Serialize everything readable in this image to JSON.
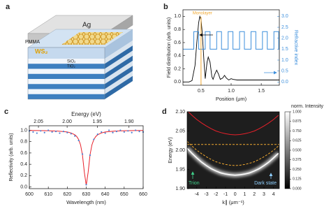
{
  "diagram": {
    "label": "a",
    "layers": {
      "top": "Ag",
      "spacer": "PMMA",
      "monolayer": "WS₂",
      "low_index": "SiO₂",
      "high_index": "TiO₂"
    }
  },
  "chart_data": [
    {
      "type": "line",
      "label": "b",
      "x_label": "Position (μm)",
      "y_label": "Field distribution (arb. units)",
      "y2_label": "Refractive index",
      "xlim": [
        0.2,
        1.8
      ],
      "xticks": [
        0.5,
        {
          "value": 1,
          "label": "1.0"
        },
        1.5
      ],
      "ylim": [
        -0.05,
        1.1
      ],
      "yticks": [
        {
          "value": 0,
          "label": "0.0"
        },
        0.2,
        0.4,
        0.6,
        0.8,
        {
          "value": 1,
          "label": "1.0"
        }
      ],
      "y2lim": [
        -0.15,
        3.3
      ],
      "y2ticks": [
        {
          "value": 0,
          "label": "0.0"
        },
        0.5,
        {
          "value": 1,
          "label": "1.0"
        },
        1.5,
        {
          "value": 2,
          "label": "2.0"
        },
        2.5,
        {
          "value": 3,
          "label": "3.0"
        }
      ],
      "annotation": {
        "text": "Monolayer",
        "x": 0.5,
        "color": "#f0a830"
      },
      "series": [
        {
          "color": "#000000",
          "x": [
            0.2,
            0.3,
            0.35,
            0.4,
            0.43,
            0.46,
            0.48,
            0.5,
            0.52,
            0.55,
            0.57,
            0.6,
            0.62,
            0.65,
            0.68,
            0.7,
            0.73,
            0.76,
            0.79,
            0.82,
            0.86,
            0.89,
            0.92,
            0.96,
            1.0,
            1.03,
            1.1,
            1.2,
            1.4,
            1.6,
            1.8
          ],
          "values": [
            0,
            0,
            0.02,
            0.25,
            0.6,
            0.9,
            1.0,
            0.95,
            0.75,
            0.3,
            0.05,
            0.3,
            0.38,
            0.3,
            0.08,
            0.04,
            0.12,
            0.18,
            0.12,
            0.04,
            0.06,
            0.1,
            0.06,
            0.03,
            0.05,
            0.04,
            0.03,
            0.03,
            0.03,
            0.03,
            0.03
          ]
        },
        {
          "color": "#3d8fdc",
          "axis": "y2",
          "x": [
            0.2,
            0.38,
            0.38,
            0.46,
            0.46,
            0.57,
            0.57,
            0.65,
            0.65,
            0.76,
            0.76,
            0.84,
            0.84,
            0.95,
            0.95,
            1.03,
            1.03,
            1.14,
            1.14,
            1.22,
            1.22,
            1.33,
            1.33,
            1.41,
            1.41,
            1.52,
            1.52,
            1.6,
            1.6,
            1.71,
            1.71,
            1.79,
            1.79,
            1.8
          ],
          "values": [
            1.5,
            1.5,
            2.3,
            2.3,
            1.5,
            1.5,
            2.3,
            2.3,
            1.5,
            1.5,
            2.3,
            2.3,
            1.5,
            1.5,
            2.3,
            2.3,
            1.5,
            1.5,
            2.3,
            2.3,
            1.5,
            1.5,
            2.3,
            2.3,
            1.5,
            1.5,
            2.3,
            2.3,
            1.5,
            1.5,
            2.3,
            2.3,
            1.5,
            1.5
          ]
        }
      ]
    },
    {
      "type": "line",
      "label": "c",
      "x_label": "Wavelength (nm)",
      "x2_label": "Energy (eV)",
      "y_label": "Reflectivity (arb. units)",
      "xlim": [
        600,
        660
      ],
      "xticks": [
        600,
        610,
        620,
        630,
        640,
        650,
        660
      ],
      "x2ticks": [
        2.05,
        {
          "value": 2,
          "label": "2.00"
        },
        1.95,
        {
          "value": 1.9,
          "label": "1.90"
        }
      ],
      "ylim": [
        -0.03,
        1.08
      ],
      "yticks": [
        {
          "value": 0,
          "label": "0.0"
        },
        0.2,
        0.4,
        0.6,
        0.8,
        {
          "value": 1,
          "label": "1.0"
        }
      ],
      "series": [
        {
          "color": "#e8202a",
          "x": [
            600,
            605,
            610,
            615,
            620,
            622,
            624,
            625,
            626,
            627,
            628,
            629,
            630,
            631,
            632,
            633,
            634,
            635,
            636,
            638,
            640,
            645,
            650,
            655,
            660
          ],
          "values": [
            0.997,
            0.995,
            0.992,
            0.986,
            0.97,
            0.953,
            0.92,
            0.889,
            0.837,
            0.743,
            0.566,
            0.259,
            0.03,
            0.259,
            0.566,
            0.743,
            0.837,
            0.889,
            0.92,
            0.953,
            0.97,
            0.986,
            0.992,
            0.995,
            0.997
          ]
        },
        {
          "color": "#4a7fd4",
          "marker": true,
          "x": [
            600,
            602,
            604,
            606,
            608,
            610,
            612,
            614,
            616,
            618,
            620,
            622,
            624,
            626,
            628,
            630,
            632,
            634,
            636,
            638,
            640,
            642,
            644,
            646,
            648,
            650,
            652,
            654,
            656,
            658,
            660
          ],
          "values": [
            0.99,
            0.97,
            0.95,
            0.99,
            0.96,
            1.0,
            0.97,
            0.98,
            0.95,
            0.98,
            0.96,
            0.94,
            0.9,
            0.82,
            0.58,
            0.04,
            0.56,
            0.84,
            0.93,
            0.97,
            0.95,
            1.0,
            0.96,
            0.98,
            1.0,
            0.97,
            0.99,
            0.96,
            1.0,
            0.98,
            0.97
          ]
        }
      ]
    },
    {
      "type": "heatmap",
      "label": "d",
      "x_label": "k∥ (μm⁻¹)",
      "y_label": "Energy (eV)",
      "xlim": [
        -5,
        4.6
      ],
      "xticks": [
        -4,
        -3,
        -2,
        -1,
        0,
        1,
        2,
        3,
        4
      ],
      "ylim": [
        1.9,
        2.1
      ],
      "yticks": [
        {
          "value": 1.9,
          "label": "1.90"
        },
        1.95,
        {
          "value": 2,
          "label": "2.00"
        },
        2.05,
        {
          "value": 2.1,
          "label": "2.10"
        }
      ],
      "colorbar": {
        "label": "norm. Intensity",
        "colors": [
          "#000000",
          "#ffffff"
        ],
        "ticks": [
          {
            "value": 0,
            "label": "0.000"
          },
          0.125,
          {
            "value": 0.25,
            "label": "0.250"
          },
          0.375,
          {
            "value": 0.5,
            "label": "0.500"
          },
          0.625,
          {
            "value": 0.75,
            "label": "0.750"
          },
          0.875,
          {
            "value": 1,
            "label": "1.000"
          }
        ]
      },
      "annotations": [
        {
          "text": "Trion",
          "color": "#3fd08a"
        },
        {
          "text": "Dark state",
          "color": "#8fd0ff"
        }
      ],
      "series": [
        {
          "color": "#ffffff",
          "glow": true,
          "x": [
            -5,
            -4.5,
            -4,
            -3.5,
            -3,
            -2.5,
            -2,
            -1.5,
            -1,
            -0.5,
            0,
            0.5,
            1,
            1.5,
            2,
            2.5,
            3,
            3.5,
            4,
            4.5
          ],
          "values": [
            2.005,
            1.992,
            1.98,
            1.969,
            1.96,
            1.952,
            1.946,
            1.941,
            1.938,
            1.936,
            1.935,
            1.936,
            1.938,
            1.941,
            1.946,
            1.952,
            1.96,
            1.969,
            1.98,
            1.992
          ]
        },
        {
          "color": "#e8202a",
          "x": [
            -5,
            -4.5,
            -4,
            -3.5,
            -3,
            -2.5,
            -2,
            -1.5,
            -1,
            -0.5,
            0,
            0.5,
            1,
            1.5,
            2,
            2.5,
            3,
            3.5,
            4,
            4.5
          ],
          "values": [
            2.103,
            2.091,
            2.08,
            2.071,
            2.063,
            2.056,
            2.05,
            2.046,
            2.043,
            2.041,
            2.04,
            2.041,
            2.043,
            2.046,
            2.05,
            2.056,
            2.063,
            2.071,
            2.08,
            2.091
          ]
        },
        {
          "color": "#f0a830",
          "dash": true,
          "x": [
            -5,
            4.6
          ],
          "values": [
            2.015,
            2.015
          ]
        },
        {
          "color": "#f0a830",
          "dash": true,
          "x": [
            -5,
            -4.5,
            -4,
            -3.5,
            -3,
            -2.5,
            -2,
            -1.5,
            -1,
            -0.5,
            0,
            0.5,
            1,
            1.5,
            2,
            2.5,
            3,
            3.5,
            4,
            4.5
          ],
          "values": [
            2.023,
            2.011,
            2.0,
            1.991,
            1.983,
            1.976,
            1.97,
            1.966,
            1.963,
            1.961,
            1.96,
            1.961,
            1.963,
            1.966,
            1.97,
            1.976,
            1.983,
            1.991,
            2.0,
            2.011
          ]
        }
      ]
    }
  ]
}
